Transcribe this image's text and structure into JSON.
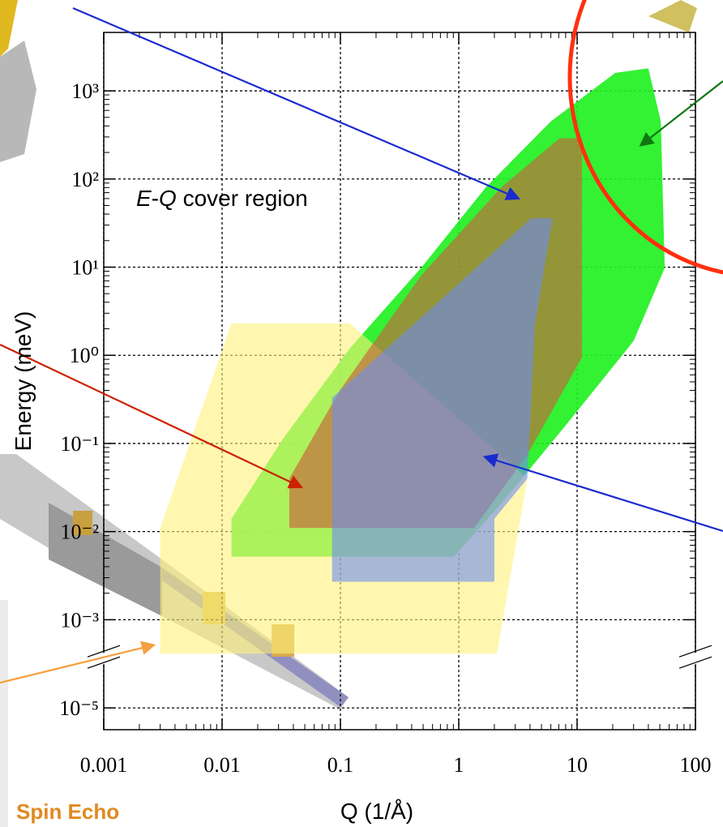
{
  "chart_data": {
    "type": "region",
    "x_label": "Q (1/Å)",
    "y_label": "Energy (meV)",
    "annotation": [
      "E",
      "-",
      "Q",
      " cover region"
    ],
    "footer_label": "Spin Echo",
    "xscale": "log",
    "yscale": "log",
    "grid": true,
    "xlim": [
      0.001,
      100
    ],
    "xticks": [
      0.001,
      0.01,
      0.1,
      1,
      10,
      100
    ],
    "ylim": [
      3.2e-06,
      4600
    ],
    "y_break": 0.001,
    "yticks": [
      {
        "value": 1000,
        "label": "10³"
      },
      {
        "value": 100,
        "label": "10²"
      },
      {
        "value": 10,
        "label": "10¹"
      },
      {
        "value": 1,
        "label": "10⁰"
      },
      {
        "value": 0.1,
        "label": "10⁻¹"
      },
      {
        "value": 0.01,
        "label": "10⁻²"
      },
      {
        "value": 0.001,
        "label": "10⁻³"
      },
      {
        "value": 1e-05,
        "label": "10⁻⁵"
      }
    ],
    "regions": [
      {
        "color": "#22f022",
        "opacity": 0.92,
        "x": [
          0.012,
          0.012,
          0.033,
          0.12,
          0.48,
          1.7,
          6.0,
          21,
          40,
          51,
          55,
          30,
          8.3,
          2.3,
          0.91
        ],
        "y": [
          0.0052,
          0.014,
          0.115,
          1.2,
          9.8,
          81,
          450,
          1600,
          1800,
          450,
          9.8,
          1.45,
          0.17,
          0.021,
          0.0052
        ]
      },
      {
        "color": "#fff27a",
        "opacity": 0.6,
        "x": [
          0.003,
          0.003,
          0.012,
          0.12,
          3.8,
          2.1
        ],
        "y": [
          0.00017,
          0.011,
          2.3,
          2.3,
          0.04,
          0.00017
        ]
      },
      {
        "color": "#c8643c",
        "opacity": 0.65,
        "x": [
          0.037,
          0.037,
          0.1,
          0.48,
          2.3,
          7.1,
          11,
          11,
          3.8,
          1.35
        ],
        "y": [
          0.011,
          0.04,
          0.41,
          8,
          81,
          290,
          290,
          0.95,
          0.075,
          0.011
        ]
      },
      {
        "color": "#6e8cf0",
        "opacity": 0.6,
        "x": [
          0.085,
          0.085,
          4.1,
          6.2,
          4.4,
          3.8,
          2.0,
          2.0
        ],
        "y": [
          0.0027,
          0.33,
          36,
          36,
          2.2,
          0.04,
          0.014,
          0.0027
        ]
      }
    ]
  }
}
